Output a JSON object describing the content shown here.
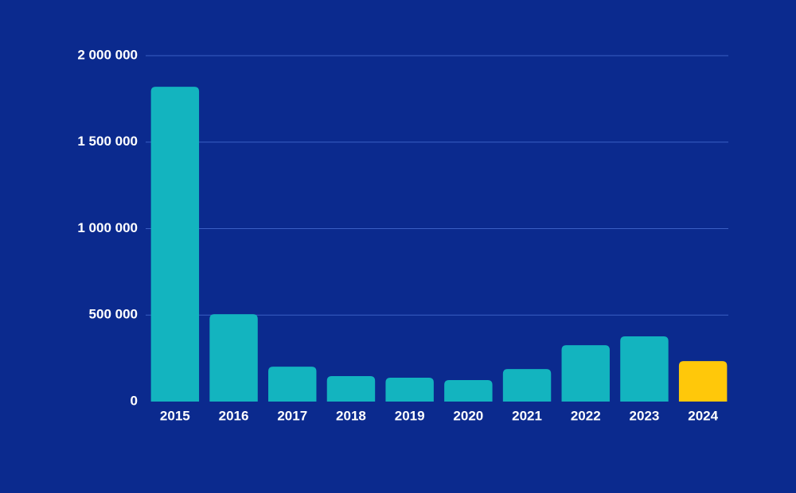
{
  "chart_data": {
    "type": "bar",
    "categories": [
      "2015",
      "2016",
      "2017",
      "2018",
      "2019",
      "2020",
      "2021",
      "2022",
      "2023",
      "2024"
    ],
    "values": [
      1820000,
      505000,
      202000,
      147000,
      138000,
      124000,
      188000,
      326000,
      377000,
      234000
    ],
    "colors": [
      "#13b4bf",
      "#13b4bf",
      "#13b4bf",
      "#13b4bf",
      "#13b4bf",
      "#13b4bf",
      "#13b4bf",
      "#13b4bf",
      "#13b4bf",
      "#ffc80a"
    ],
    "ylim": [
      0,
      2000000
    ],
    "yticks": [
      0,
      {
        "value": 500000,
        "label": "500 000"
      },
      {
        "value": 1000000,
        "label": "1 000 000"
      },
      {
        "value": 1500000,
        "label": "1 500 000"
      },
      {
        "value": 2000000,
        "label": "2 000 000"
      }
    ],
    "grid": true
  }
}
